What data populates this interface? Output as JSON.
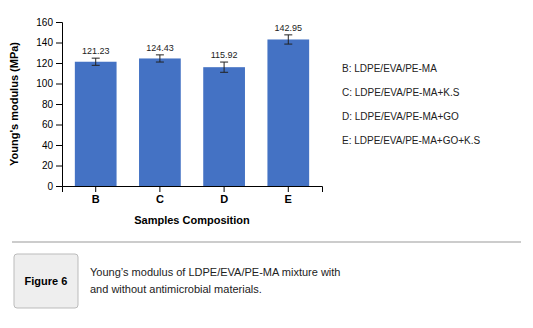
{
  "chart_data": {
    "type": "bar",
    "title": "Figure 6",
    "subtitle": "Young’s modulus of LDPE/EVA/PE-MA mixture with\nand without antimicrobial materials.",
    "categories": [
      "B",
      "C",
      "D",
      "E"
    ],
    "values": [
      121.23,
      124.43,
      115.92,
      142.95
    ],
    "errors": [
      3.5,
      3.5,
      5.0,
      4.5
    ],
    "color": "#4472C4",
    "xlabel": "Samples Composition",
    "ylabel": "Young's modulus (MPa)",
    "ylim": [
      0,
      160
    ],
    "yticks": [
      0,
      20,
      40,
      60,
      80,
      100,
      120,
      140,
      160
    ],
    "annotations": [
      "B: LDPE/EVA/PE-MA",
      "C: LDPE/EVA/PE-MA+K.S",
      "D: LDPE/EVA/PE-MA+GO",
      "E: LDPE/EVA/PE-MA+GO+K.S"
    ],
    "data_labels": true,
    "grid": false
  }
}
